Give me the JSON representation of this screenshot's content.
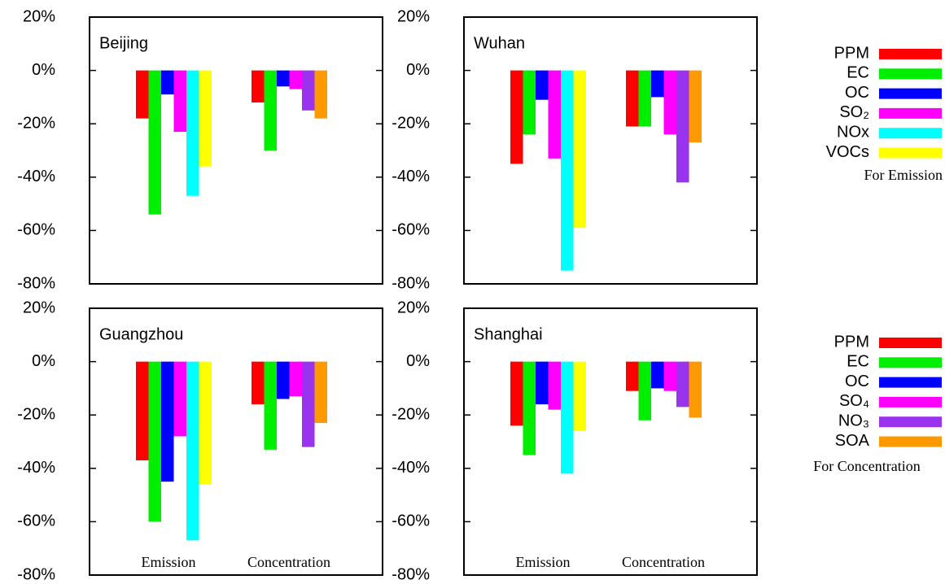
{
  "chart_data": [
    {
      "type": "bar",
      "title": "Beijing",
      "emission": [
        -18,
        -54,
        -9,
        -23,
        -47,
        -36
      ],
      "concentration": [
        -12,
        -30,
        -6,
        -7,
        -15,
        -18
      ],
      "ylim": [
        -80,
        20
      ],
      "yticks": [
        {
          "value": -80,
          "label": "-80%"
        },
        {
          "value": -60,
          "label": "-60%"
        },
        {
          "value": -40,
          "label": "-40%"
        },
        {
          "value": -20,
          "label": "-20%"
        },
        {
          "value": 0,
          "label": "0%"
        },
        {
          "value": 20,
          "label": "20%"
        }
      ]
    },
    {
      "type": "bar",
      "title": "Wuhan",
      "emission": [
        -35,
        -24,
        -11,
        -33,
        -75,
        -59
      ],
      "concentration": [
        -21,
        -21,
        -10,
        -24,
        -42,
        -27
      ],
      "ylim": [
        -80,
        20
      ],
      "yticks": [
        {
          "value": -80,
          "label": "-80%"
        },
        {
          "value": -60,
          "label": "-60%"
        },
        {
          "value": -40,
          "label": "-40%"
        },
        {
          "value": -20,
          "label": "-20%"
        },
        {
          "value": 0,
          "label": "0%"
        },
        {
          "value": 20,
          "label": "20%"
        }
      ]
    },
    {
      "type": "bar",
      "title": "Guangzhou",
      "categories": [
        "Emission",
        "Concentration"
      ],
      "emission": [
        -37,
        -60,
        -45,
        -28,
        -67,
        -46
      ],
      "concentration": [
        -16,
        -33,
        -14,
        -13,
        -32,
        -23
      ],
      "ylim": [
        -80,
        20
      ],
      "yticks": [
        {
          "value": -80,
          "label": "-80%"
        },
        {
          "value": -60,
          "label": "-60%"
        },
        {
          "value": -40,
          "label": "-40%"
        },
        {
          "value": -20,
          "label": "-20%"
        },
        {
          "value": 0,
          "label": "0%"
        },
        {
          "value": 20,
          "label": "20%"
        }
      ]
    },
    {
      "type": "bar",
      "title": "Shanghai",
      "categories": [
        "Emission",
        "Concentration"
      ],
      "emission": [
        -24,
        -35,
        -16,
        -18,
        -42,
        -26
      ],
      "concentration": [
        -11,
        -22,
        -10,
        -11,
        -17,
        -21
      ],
      "ylim": [
        -80,
        20
      ],
      "yticks": [
        {
          "value": -80,
          "label": "-80%"
        },
        {
          "value": -60,
          "label": "-60%"
        },
        {
          "value": -40,
          "label": "-40%"
        },
        {
          "value": -20,
          "label": "-20%"
        },
        {
          "value": 0,
          "label": "0%"
        },
        {
          "value": 20,
          "label": "20%"
        }
      ]
    }
  ],
  "legends": [
    {
      "title": "For Emission",
      "items": [
        {
          "name": "PPM",
          "color": "#ff0000"
        },
        {
          "name": "EC",
          "color": "#00ee00"
        },
        {
          "name": "OC",
          "color": "#0000ff"
        },
        {
          "name": "SO₂",
          "color": "#ff00ff"
        },
        {
          "name": "NOx",
          "color": "#00ffff"
        },
        {
          "name": "VOCs",
          "color": "#ffff00"
        }
      ]
    },
    {
      "title": "For Concentration",
      "items": [
        {
          "name": "PPM",
          "color": "#ff0000"
        },
        {
          "name": "EC",
          "color": "#00ee00"
        },
        {
          "name": "OC",
          "color": "#0000ff"
        },
        {
          "name": "SO₄",
          "color": "#ff00ff"
        },
        {
          "name": "NO₃",
          "color": "#9933ee"
        },
        {
          "name": "SOA",
          "color": "#ff9900"
        }
      ]
    }
  ]
}
